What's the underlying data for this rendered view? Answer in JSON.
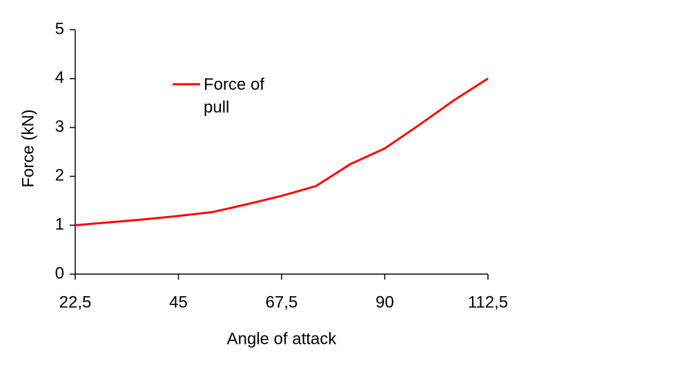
{
  "chart_data": {
    "type": "line",
    "x_label": "Angle of attack",
    "y_label": "Force (kN)",
    "x": [
      22.5,
      30,
      37.5,
      45,
      52.5,
      60,
      67.5,
      75,
      82.5,
      90,
      97.5,
      105,
      112.5
    ],
    "series": [
      {
        "name": "Force of pull",
        "color": "#ff0000",
        "values": [
          1.0,
          1.06,
          1.12,
          1.19,
          1.27,
          1.43,
          1.6,
          1.8,
          2.25,
          2.57,
          3.05,
          3.55,
          4.0
        ]
      }
    ],
    "xlim": [
      22.5,
      112.5
    ],
    "xticks": [
      {
        "value": 22.5,
        "label": "22,5"
      },
      45,
      {
        "value": 67.5,
        "label": "67,5"
      },
      90,
      {
        "value": 112.5,
        "label": "112,5"
      }
    ],
    "ylim": [
      0,
      5
    ],
    "yticks": [
      0,
      1,
      2,
      3,
      4,
      5
    ]
  }
}
